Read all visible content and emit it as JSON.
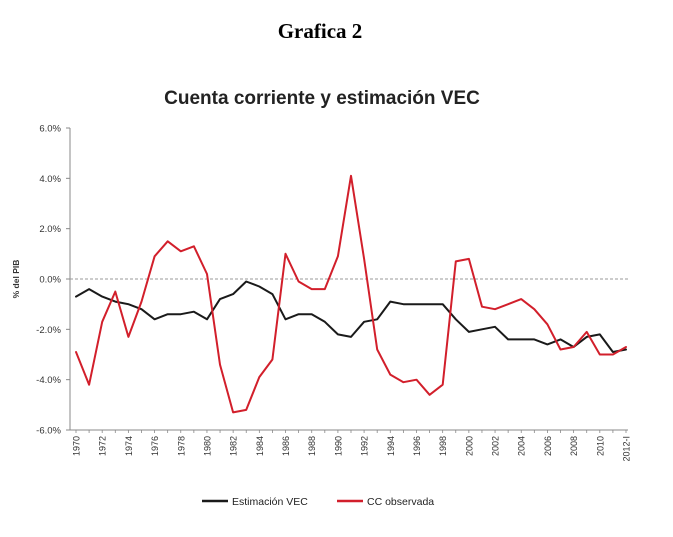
{
  "page": {
    "heading": "Grafica 2"
  },
  "colors": {
    "estimacion_vec": "#1a1a1a",
    "cc_observada": "#d21f2b",
    "zero_line": "#9a9a9a",
    "axis": "#888888"
  },
  "chart_data": {
    "type": "line",
    "title": "Cuenta corriente y estimación VEC",
    "ylabel": "% del PIB",
    "xlabel": "",
    "ylim": [
      -6.0,
      6.0
    ],
    "y_ticks": [
      6.0,
      4.0,
      2.0,
      0.0,
      -2.0,
      -4.0,
      -6.0
    ],
    "y_tick_labels": [
      "6.0%",
      "4.0%",
      "2.0%",
      "0.0%",
      "-2.0%",
      "-4.0%",
      "-6.0%"
    ],
    "reference_line": 0.0,
    "x_tick_labels": [
      "1970",
      "1972",
      "1974",
      "1976",
      "1978",
      "1980",
      "1982",
      "1984",
      "1986",
      "1988",
      "1990",
      "1992",
      "1994",
      "1996",
      "1998",
      "2000",
      "2002",
      "2004",
      "2006",
      "2008",
      "2010",
      "2012-I"
    ],
    "x": [
      "1970",
      "1971",
      "1972",
      "1973",
      "1974",
      "1975",
      "1976",
      "1977",
      "1978",
      "1979",
      "1980",
      "1981",
      "1982",
      "1983",
      "1984",
      "1985",
      "1986",
      "1987",
      "1988",
      "1989",
      "1990",
      "1991",
      "1992",
      "1993",
      "1994",
      "1995",
      "1996",
      "1997",
      "1998",
      "1999",
      "2000",
      "2001",
      "2002",
      "2003",
      "2004",
      "2005",
      "2006",
      "2007",
      "2008",
      "2009",
      "2010",
      "2011",
      "2012-I"
    ],
    "legend_position": "bottom",
    "series": [
      {
        "name": "Estimación VEC",
        "color": "#1a1a1a",
        "values": [
          -0.7,
          -0.4,
          -0.7,
          -0.9,
          -1.0,
          -1.2,
          -1.6,
          -1.4,
          -1.4,
          -1.3,
          -1.6,
          -0.8,
          -0.6,
          -0.1,
          -0.3,
          -0.6,
          -1.6,
          -1.4,
          -1.4,
          -1.7,
          -2.2,
          -2.3,
          -1.7,
          -1.6,
          -0.9,
          -1.0,
          -1.0,
          -1.0,
          -1.0,
          -1.6,
          -2.1,
          -2.0,
          -1.9,
          -2.4,
          -2.4,
          -2.4,
          -2.6,
          -2.4,
          -2.7,
          -2.3,
          -2.2,
          -2.9,
          -2.8
        ]
      },
      {
        "name": "CC observada",
        "color": "#d21f2b",
        "values": [
          -2.9,
          -4.2,
          -1.7,
          -0.5,
          -2.3,
          -0.9,
          0.9,
          1.5,
          1.1,
          1.3,
          0.2,
          -3.4,
          -5.3,
          -5.2,
          -3.9,
          -3.2,
          1.0,
          -0.1,
          -0.4,
          -0.4,
          0.9,
          4.1,
          0.8,
          -2.8,
          -3.8,
          -4.1,
          -4.0,
          -4.6,
          -4.2,
          0.7,
          0.8,
          -1.1,
          -1.2,
          -1.0,
          -0.8,
          -1.2,
          -1.8,
          -2.8,
          -2.7,
          -2.1,
          -3.0,
          -3.0,
          -2.7
        ]
      }
    ]
  }
}
